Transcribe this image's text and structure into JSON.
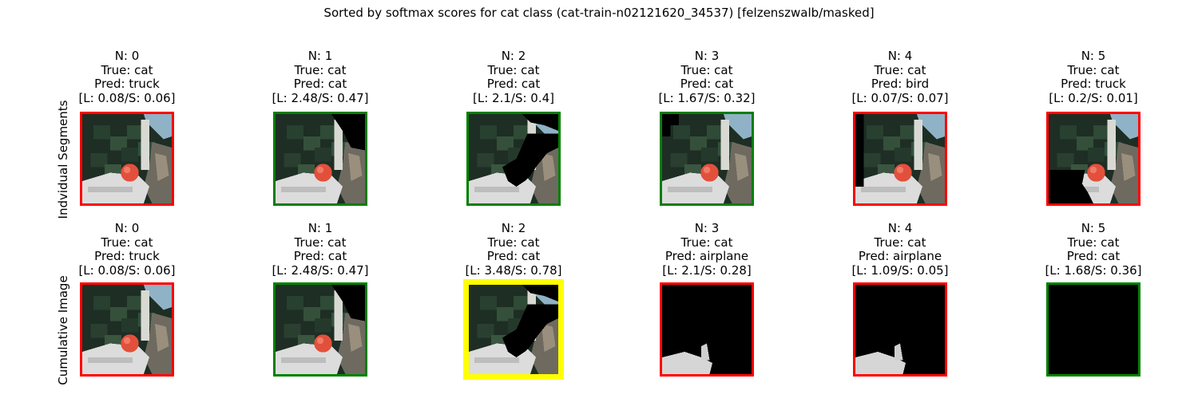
{
  "suptitle": "Sorted by softmax scores for cat class (cat-train-n02121620_34537) [felzenszwalb/masked]",
  "colors": {
    "correct": "#008000",
    "wrong": "#ff0000",
    "best": "#ffff00"
  },
  "chart_data": [
    {
      "type": "table",
      "row_label": "Indvidual Segments",
      "panels": [
        {
          "n": "N: 0",
          "true": "True: cat",
          "pred": "Pred: truck",
          "scores": "[L: 0.08/S: 0.06]",
          "border": "wrong",
          "mask": "full"
        },
        {
          "n": "N: 1",
          "true": "True: cat",
          "pred": "Pred: cat",
          "scores": "[L: 2.48/S: 0.47]",
          "border": "correct",
          "mask": "no_sky"
        },
        {
          "n": "N: 2",
          "true": "True: cat",
          "pred": "Pred: cat",
          "scores": "[L: 2.1/S: 0.4]",
          "border": "correct",
          "mask": "tree_cat"
        },
        {
          "n": "N: 3",
          "true": "True: cat",
          "pred": "Pred: cat",
          "scores": "[L: 1.67/S: 0.32]",
          "border": "correct",
          "mask": "no_topleft"
        },
        {
          "n": "N: 4",
          "true": "True: cat",
          "pred": "Pred: bird",
          "scores": "[L: 0.07/S: 0.07]",
          "border": "wrong",
          "mask": "no_leftstrip"
        },
        {
          "n": "N: 5",
          "true": "True: cat",
          "pred": "Pred: truck",
          "scores": "[L: 0.2/S: 0.01]",
          "border": "wrong",
          "mask": "no_bottomleft"
        }
      ]
    },
    {
      "type": "table",
      "row_label": "Cumulative Image",
      "panels": [
        {
          "n": "N: 0",
          "true": "True: cat",
          "pred": "Pred: truck",
          "scores": "[L: 0.08/S: 0.06]",
          "border": "wrong",
          "mask": "full"
        },
        {
          "n": "N: 1",
          "true": "True: cat",
          "pred": "Pred: cat",
          "scores": "[L: 2.48/S: 0.47]",
          "border": "correct",
          "mask": "no_sky"
        },
        {
          "n": "N: 2",
          "true": "True: cat",
          "pred": "Pred: cat",
          "scores": "[L: 3.48/S: 0.78]",
          "border": "best",
          "mask": "tree_cat"
        },
        {
          "n": "N: 3",
          "true": "True: cat",
          "pred": "Pred: airplane",
          "scores": "[L: 2.1/S: 0.28]",
          "border": "wrong",
          "mask": "cat_sliver"
        },
        {
          "n": "N: 4",
          "true": "True: cat",
          "pred": "Pred: airplane",
          "scores": "[L: 1.09/S: 0.05]",
          "border": "wrong",
          "mask": "cat_only"
        },
        {
          "n": "N: 5",
          "true": "True: cat",
          "pred": "Pred: cat",
          "scores": "[L: 1.68/S: 0.36]",
          "border": "correct",
          "mask": "empty"
        }
      ]
    }
  ]
}
